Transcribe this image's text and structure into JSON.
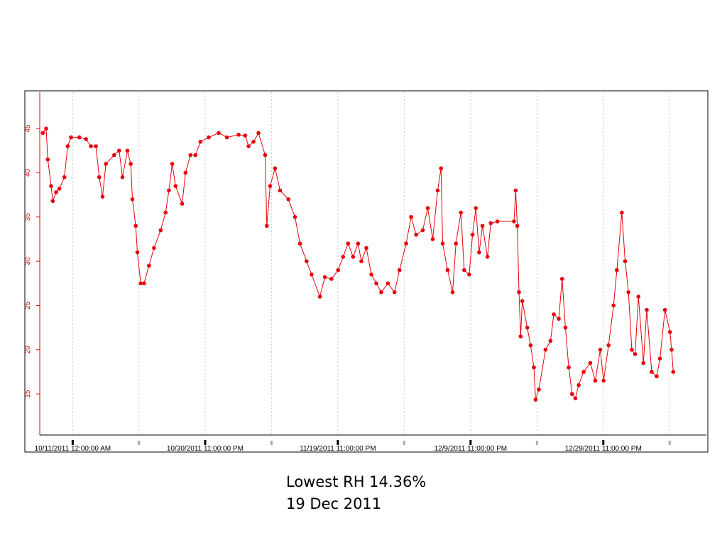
{
  "chart_data": {
    "type": "line",
    "x": [
      "2011-10-06T12:00",
      "2011-10-07T00:00",
      "2011-10-07T06:00",
      "2011-10-07T18:00",
      "2011-10-08T00:00",
      "2011-10-08T12:00",
      "2011-10-09T00:00",
      "2011-10-09T18:00",
      "2011-10-10T06:00",
      "2011-10-10T18:00",
      "2011-10-12T00:00",
      "2011-10-13T00:00",
      "2011-10-13T18:00",
      "2011-10-14T12:00",
      "2011-10-15T00:00",
      "2011-10-15T12:00",
      "2011-10-16T00:00",
      "2011-10-17T06:00",
      "2011-10-18T00:00",
      "2011-10-18T12:00",
      "2011-10-19T06:00",
      "2011-10-19T18:00",
      "2011-10-20T00:00",
      "2011-10-20T12:00",
      "2011-10-20T18:00",
      "2011-10-21T06:00",
      "2011-10-21T18:00",
      "2011-10-22T12:00",
      "2011-10-23T06:00",
      "2011-10-24T06:00",
      "2011-10-25T00:00",
      "2011-10-25T12:00",
      "2011-10-26T00:00",
      "2011-10-26T12:00",
      "2011-10-27T12:00",
      "2011-10-28T00:00",
      "2011-10-28T18:00",
      "2011-10-29T12:00",
      "2011-10-30T06:00",
      "2011-10-31T12:00",
      "2011-11-02T00:00",
      "2011-11-03T06:00",
      "2011-11-05T00:00",
      "2011-11-06T00:00",
      "2011-11-06T12:00",
      "2011-11-07T06:00",
      "2011-11-08T00:00",
      "2011-11-09T00:00",
      "2011-11-09T06:00",
      "2011-11-09T18:00",
      "2011-11-10T12:00",
      "2011-11-11T06:00",
      "2011-11-12T12:00",
      "2011-11-13T12:00",
      "2011-11-14T06:00",
      "2011-11-15T06:00",
      "2011-11-16T00:00",
      "2011-11-17T06:00",
      "2011-11-18T00:00",
      "2011-11-19T00:00",
      "2011-11-20T00:00",
      "2011-11-20T18:00",
      "2011-11-21T12:00",
      "2011-11-22T06:00",
      "2011-11-23T00:00",
      "2011-11-23T12:00",
      "2011-11-24T06:00",
      "2011-11-25T00:00",
      "2011-11-25T18:00",
      "2011-11-26T12:00",
      "2011-11-27T12:00",
      "2011-11-28T12:00",
      "2011-11-29T06:00",
      "2011-11-30T06:00",
      "2011-12-01T00:00",
      "2011-12-01T18:00",
      "2011-12-02T18:00",
      "2011-12-03T12:00",
      "2011-12-04T06:00",
      "2011-12-05T00:00",
      "2011-12-05T12:00",
      "2011-12-05T18:00",
      "2011-12-06T12:00",
      "2011-12-07T06:00",
      "2011-12-07T18:00",
      "2011-12-08T12:00",
      "2011-12-09T00:00",
      "2011-12-09T18:00",
      "2011-12-10T06:00",
      "2011-12-10T18:00",
      "2011-12-11T06:00",
      "2011-12-11T18:00",
      "2011-12-12T12:00",
      "2011-12-13T00:00",
      "2011-12-14T00:00",
      "2011-12-16T12:00",
      "2011-12-16T18:00",
      "2011-12-17T00:00",
      "2011-12-17T06:00",
      "2011-12-17T12:00",
      "2011-12-17T18:00",
      "2011-12-18T12:00",
      "2011-12-19T00:00",
      "2011-12-19T12:00",
      "2011-12-19T18:00",
      "2011-12-20T06:00",
      "2011-12-21T06:00",
      "2011-12-22T00:00",
      "2011-12-22T12:00",
      "2011-12-23T06:00",
      "2011-12-23T18:00",
      "2011-12-24T06:00",
      "2011-12-24T18:00",
      "2011-12-25T06:00",
      "2011-12-25T18:00",
      "2011-12-26T06:00",
      "2011-12-27T00:00",
      "2011-12-28T00:00",
      "2011-12-28T18:00",
      "2011-12-29T12:00",
      "2011-12-30T00:00",
      "2011-12-30T18:00",
      "2011-12-31T12:00",
      "2012-01-01T00:00",
      "2012-01-01T18:00",
      "2012-01-02T06:00",
      "2012-01-02T18:00",
      "2012-01-03T06:00",
      "2012-01-03T18:00",
      "2012-01-04T06:00",
      "2012-01-05T00:00",
      "2012-01-05T12:00",
      "2012-01-06T06:00",
      "2012-01-07T00:00",
      "2012-01-07T12:00",
      "2012-01-08T06:00",
      "2012-01-09T00:00",
      "2012-01-09T06:00",
      "2012-01-09T12:00"
    ],
    "series": [
      {
        "color": "#e8000b",
        "values": [
          44.5,
          45,
          41.5,
          38.5,
          36.8,
          37.8,
          38.2,
          39.5,
          43,
          44,
          44,
          43.8,
          43,
          43,
          39.5,
          37.3,
          41,
          42,
          42.5,
          39.5,
          42.5,
          41,
          37,
          34,
          31,
          27.5,
          27.5,
          29.5,
          31.5,
          33.5,
          35.5,
          38,
          41,
          38.5,
          36.5,
          40,
          42,
          42,
          43.5,
          44,
          44.5,
          44,
          44.3,
          44.2,
          43,
          43.5,
          44.5,
          42,
          34,
          38.5,
          40.5,
          38,
          37,
          35,
          32,
          30,
          28.5,
          26,
          28.2,
          28,
          29,
          30.5,
          32,
          30.5,
          32,
          30,
          31.5,
          28.5,
          27.5,
          26.5,
          27.5,
          26.5,
          29,
          32,
          35,
          33,
          33.5,
          36,
          32.5,
          38,
          40.5,
          32,
          29,
          26.5,
          32,
          35.5,
          29,
          28.5,
          33,
          36,
          31,
          34,
          30.5,
          34.3,
          34.5,
          34.5,
          38,
          34,
          26.5,
          21.5,
          25.5,
          22.5,
          20.5,
          18,
          14.36,
          15.5,
          20,
          21,
          24,
          23.5,
          28,
          22.5,
          18,
          15,
          14.5,
          16,
          17.5,
          18.5,
          16.5,
          20,
          16.5,
          20.5,
          25,
          29,
          35.5,
          30,
          26.5,
          20,
          19.5,
          26,
          18.5,
          24.5,
          17.5,
          17,
          19,
          24.5,
          22,
          20,
          17.5
        ]
      }
    ],
    "xlim": [
      "2011-10-03T19:00",
      "2012-01-14T17:00"
    ],
    "xticks": [
      {
        "value": "2011-10-11T00:00",
        "label": "10/11/2011 12:00:00 AM"
      },
      {
        "value": "2011-10-30T23:00",
        "label": "10/30/2011 11:00:00 PM"
      },
      {
        "value": "2011-11-19T23:00",
        "label": "11/19/2011 11:00:00 PM"
      },
      {
        "value": "2011-12-09T23:00",
        "label": "12/9/2011 11:00:00 PM"
      },
      {
        "value": "2011-12-29T23:00",
        "label": "12/29/2011 11:00:00 PM"
      }
    ],
    "x_minor_ticks": [
      "2011-10-20T23:30",
      "2011-11-09T23:00",
      "2011-11-29T23:00",
      "2011-12-19T23:00",
      "2012-01-08T23:00"
    ],
    "ylim": [
      10.6,
      49.1
    ],
    "yticks": [
      15,
      20,
      25,
      30,
      35,
      40,
      45
    ],
    "grid": true,
    "annotations": [
      "Lowest RH 14.36%",
      "19 Dec 2011"
    ]
  }
}
